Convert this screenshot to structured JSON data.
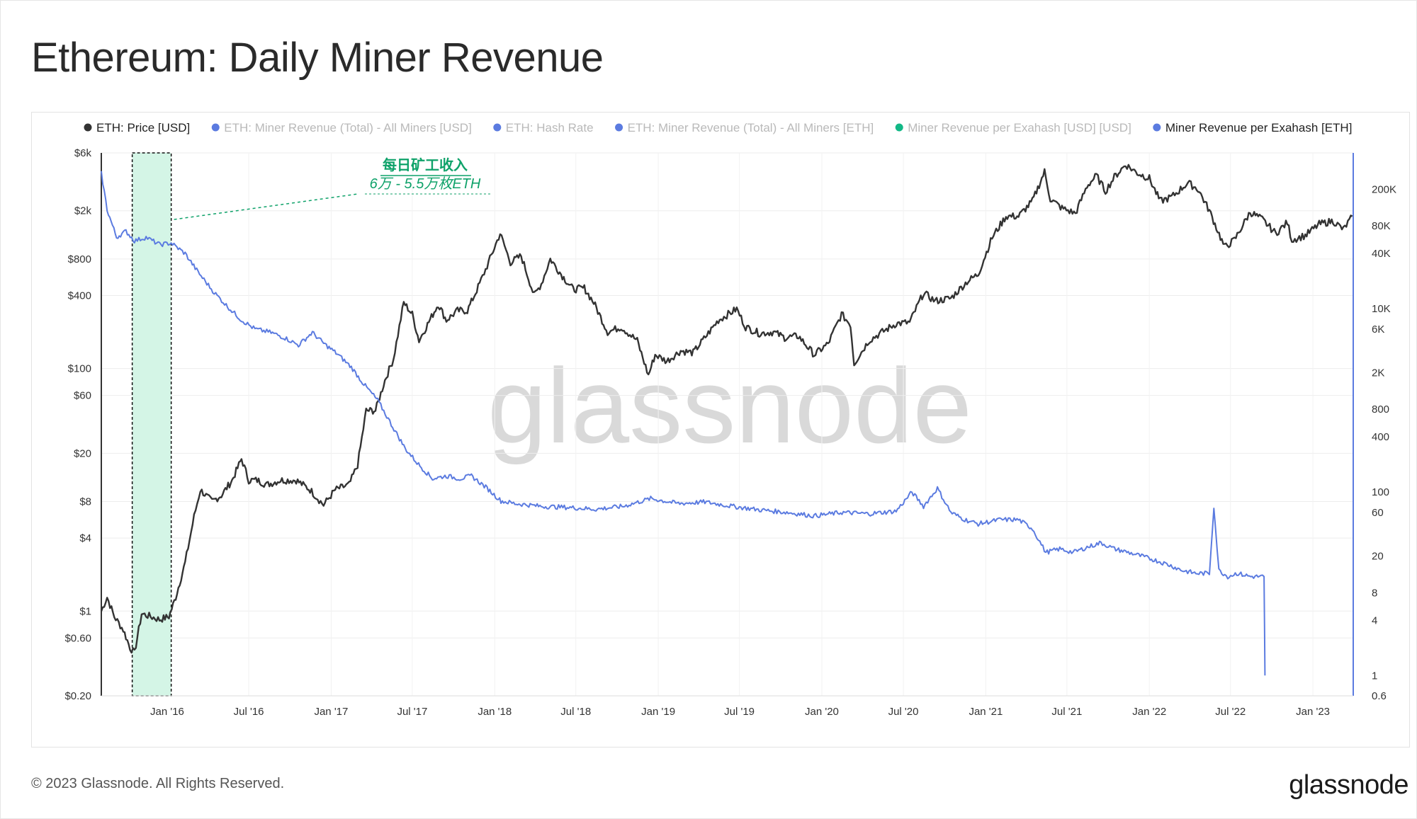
{
  "page": {
    "title": "Ethereum: Daily Miner Revenue",
    "copyright": "© 2023 Glassnode. All Rights Reserved.",
    "footer_logo": "glassnode",
    "watermark": "glassnode"
  },
  "colors": {
    "price": "#333333",
    "revenue": "#5b7be0",
    "highlight_fill": "#d4f5e6",
    "annotation": "#0fa26a"
  },
  "annotation": {
    "title": "每日矿工收入",
    "subtitle": "6万 - 5.5万枚ETH"
  },
  "chart_data": {
    "type": "line",
    "title": "Ethereum: Daily Miner Revenue",
    "x_ticks": [
      "Jan '16",
      "Jul '16",
      "Jan '17",
      "Jul '17",
      "Jan '18",
      "Jul '18",
      "Jan '19",
      "Jul '19",
      "Jan '20",
      "Jul '20",
      "Jan '21",
      "Jul '21",
      "Jan '22",
      "Jul '22",
      "Jan '23"
    ],
    "y_left_ticks": [
      "$6k",
      "$2k",
      "$800",
      "$400",
      "$100",
      "$60",
      "$20",
      "$8",
      "$4",
      "$1",
      "$0.60",
      "$0.20"
    ],
    "y_right_ticks": [
      "200K",
      "80K",
      "40K",
      "10K",
      "6K",
      "2K",
      "800",
      "400",
      "100",
      "60",
      "20",
      "8",
      "4",
      "1",
      "0.6"
    ],
    "y_left_scale": "log",
    "y_right_scale": "log",
    "y_left_range": [
      0.2,
      6000
    ],
    "y_right_range": [
      0.6,
      500000
    ],
    "legend": [
      {
        "label": "ETH: Price [USD]",
        "color": "#333333",
        "active": true
      },
      {
        "label": "ETH: Miner Revenue (Total) - All Miners [USD]",
        "color": "#5b7be0",
        "active": false
      },
      {
        "label": "ETH: Hash Rate",
        "color": "#5b7be0",
        "active": false
      },
      {
        "label": "ETH: Miner Revenue (Total) - All Miners [ETH]",
        "color": "#5b7be0",
        "active": false
      },
      {
        "label": "Miner Revenue per Exahash [USD] [USD]",
        "color": "#12b886",
        "active": false
      },
      {
        "label": "Miner Revenue per Exahash [ETH]",
        "color": "#5b7be0",
        "active": true
      }
    ],
    "highlight": {
      "from": "2015-10-15",
      "to": "2016-01-10"
    },
    "series": [
      {
        "name": "ETH: Price [USD]",
        "axis": "left",
        "points": [
          [
            "2015-08-07",
            1.0
          ],
          [
            "2015-08-20",
            1.3
          ],
          [
            "2015-09-05",
            0.9
          ],
          [
            "2015-09-25",
            0.7
          ],
          [
            "2015-10-10",
            0.5
          ],
          [
            "2015-10-20",
            0.45
          ],
          [
            "2015-11-05",
            0.95
          ],
          [
            "2015-11-25",
            0.9
          ],
          [
            "2015-12-15",
            0.85
          ],
          [
            "2016-01-05",
            0.9
          ],
          [
            "2016-01-20",
            1.3
          ],
          [
            "2016-02-10",
            2.5
          ],
          [
            "2016-03-01",
            6
          ],
          [
            "2016-03-15",
            10
          ],
          [
            "2016-04-10",
            8
          ],
          [
            "2016-05-01",
            9
          ],
          [
            "2016-05-25",
            12
          ],
          [
            "2016-06-15",
            18
          ],
          [
            "2016-07-01",
            12
          ],
          [
            "2016-07-20",
            12
          ],
          [
            "2016-08-10",
            11
          ],
          [
            "2016-09-10",
            12
          ],
          [
            "2016-10-15",
            12
          ],
          [
            "2016-11-15",
            10
          ],
          [
            "2016-12-15",
            7.5
          ],
          [
            "2017-01-10",
            10
          ],
          [
            "2017-02-10",
            11
          ],
          [
            "2017-03-01",
            16
          ],
          [
            "2017-03-20",
            45
          ],
          [
            "2017-04-10",
            45
          ],
          [
            "2017-05-01",
            80
          ],
          [
            "2017-05-20",
            120
          ],
          [
            "2017-06-12",
            350
          ],
          [
            "2017-07-01",
            280
          ],
          [
            "2017-07-16",
            170
          ],
          [
            "2017-08-01",
            220
          ],
          [
            "2017-08-28",
            340
          ],
          [
            "2017-09-15",
            250
          ],
          [
            "2017-10-10",
            300
          ],
          [
            "2017-11-01",
            300
          ],
          [
            "2017-11-25",
            470
          ],
          [
            "2017-12-15",
            700
          ],
          [
            "2018-01-13",
            1300
          ],
          [
            "2018-02-05",
            750
          ],
          [
            "2018-03-01",
            850
          ],
          [
            "2018-03-30",
            400
          ],
          [
            "2018-04-15",
            500
          ],
          [
            "2018-05-05",
            800
          ],
          [
            "2018-06-01",
            580
          ],
          [
            "2018-06-25",
            450
          ],
          [
            "2018-07-20",
            460
          ],
          [
            "2018-08-10",
            350
          ],
          [
            "2018-09-10",
            200
          ],
          [
            "2018-10-10",
            220
          ],
          [
            "2018-11-15",
            170
          ],
          [
            "2018-12-10",
            88
          ],
          [
            "2018-12-25",
            130
          ],
          [
            "2019-01-20",
            115
          ],
          [
            "2019-02-20",
            140
          ],
          [
            "2019-03-20",
            135
          ],
          [
            "2019-04-10",
            170
          ],
          [
            "2019-05-15",
            250
          ],
          [
            "2019-06-25",
            310
          ],
          [
            "2019-07-15",
            220
          ],
          [
            "2019-08-15",
            195
          ],
          [
            "2019-09-15",
            200
          ],
          [
            "2019-10-10",
            180
          ],
          [
            "2019-11-10",
            185
          ],
          [
            "2019-12-15",
            130
          ],
          [
            "2020-01-15",
            160
          ],
          [
            "2020-02-14",
            280
          ],
          [
            "2020-03-05",
            230
          ],
          [
            "2020-03-13",
            110
          ],
          [
            "2020-04-15",
            170
          ],
          [
            "2020-05-15",
            200
          ],
          [
            "2020-06-15",
            235
          ],
          [
            "2020-07-15",
            240
          ],
          [
            "2020-08-15",
            420
          ],
          [
            "2020-09-10",
            360
          ],
          [
            "2020-10-15",
            380
          ],
          [
            "2020-11-20",
            520
          ],
          [
            "2020-12-15",
            600
          ],
          [
            "2021-01-15",
            1200
          ],
          [
            "2021-02-15",
            1800
          ],
          [
            "2021-03-15",
            1800
          ],
          [
            "2021-04-15",
            2400
          ],
          [
            "2021-05-12",
            4200
          ],
          [
            "2021-05-25",
            2500
          ],
          [
            "2021-06-20",
            2100
          ],
          [
            "2021-07-20",
            1900
          ],
          [
            "2021-08-15",
            3200
          ],
          [
            "2021-09-05",
            3900
          ],
          [
            "2021-09-25",
            2900
          ],
          [
            "2021-10-15",
            3800
          ],
          [
            "2021-11-09",
            4800
          ],
          [
            "2021-12-05",
            4100
          ],
          [
            "2022-01-01",
            3700
          ],
          [
            "2022-01-25",
            2400
          ],
          [
            "2022-02-20",
            2600
          ],
          [
            "2022-03-28",
            3400
          ],
          [
            "2022-04-20",
            3000
          ],
          [
            "2022-05-15",
            2000
          ],
          [
            "2022-06-18",
            1000
          ],
          [
            "2022-07-10",
            1150
          ],
          [
            "2022-08-14",
            1950
          ],
          [
            "2022-09-10",
            1700
          ],
          [
            "2022-10-10",
            1300
          ],
          [
            "2022-11-05",
            1600
          ],
          [
            "2022-11-15",
            1150
          ],
          [
            "2022-12-15",
            1250
          ],
          [
            "2023-01-15",
            1550
          ],
          [
            "2023-02-15",
            1650
          ],
          [
            "2023-03-10",
            1400
          ],
          [
            "2023-03-30",
            1800
          ]
        ]
      },
      {
        "name": "Miner Revenue per Exahash [ETH]",
        "axis": "right",
        "points": [
          [
            "2015-08-07",
            300000
          ],
          [
            "2015-08-20",
            120000
          ],
          [
            "2015-09-10",
            60000
          ],
          [
            "2015-10-01",
            70000
          ],
          [
            "2015-10-20",
            55000
          ],
          [
            "2015-11-15",
            60000
          ],
          [
            "2015-12-15",
            50000
          ],
          [
            "2016-01-10",
            52000
          ],
          [
            "2016-02-10",
            40000
          ],
          [
            "2016-03-10",
            25000
          ],
          [
            "2016-04-15",
            15000
          ],
          [
            "2016-05-15",
            10500
          ],
          [
            "2016-06-15",
            7500
          ],
          [
            "2016-07-15",
            6000
          ],
          [
            "2016-08-20",
            5500
          ],
          [
            "2016-09-20",
            4800
          ],
          [
            "2016-10-20",
            4000
          ],
          [
            "2016-11-20",
            5500
          ],
          [
            "2016-12-15",
            4200
          ],
          [
            "2017-01-15",
            3200
          ],
          [
            "2017-02-15",
            2300
          ],
          [
            "2017-03-15",
            1500
          ],
          [
            "2017-04-15",
            1000
          ],
          [
            "2017-05-15",
            550
          ],
          [
            "2017-06-15",
            300
          ],
          [
            "2017-07-15",
            200
          ],
          [
            "2017-08-15",
            140
          ],
          [
            "2017-09-15",
            150
          ],
          [
            "2017-10-15",
            140
          ],
          [
            "2017-11-10",
            150
          ],
          [
            "2017-12-15",
            110
          ],
          [
            "2018-01-15",
            80
          ],
          [
            "2018-02-15",
            75
          ],
          [
            "2018-04-15",
            70
          ],
          [
            "2018-06-15",
            68
          ],
          [
            "2018-08-15",
            65
          ],
          [
            "2018-10-15",
            70
          ],
          [
            "2018-12-15",
            85
          ],
          [
            "2019-02-15",
            75
          ],
          [
            "2019-04-15",
            78
          ],
          [
            "2019-06-15",
            70
          ],
          [
            "2019-08-15",
            64
          ],
          [
            "2019-10-15",
            60
          ],
          [
            "2019-12-15",
            55
          ],
          [
            "2020-02-15",
            60
          ],
          [
            "2020-04-15",
            58
          ],
          [
            "2020-06-15",
            62
          ],
          [
            "2020-07-20",
            100
          ],
          [
            "2020-08-15",
            70
          ],
          [
            "2020-09-15",
            110
          ],
          [
            "2020-10-15",
            60
          ],
          [
            "2020-11-15",
            50
          ],
          [
            "2020-12-15",
            45
          ],
          [
            "2021-02-01",
            50
          ],
          [
            "2021-03-15",
            50
          ],
          [
            "2021-04-15",
            40
          ],
          [
            "2021-05-15",
            22
          ],
          [
            "2021-06-15",
            24
          ],
          [
            "2021-07-15",
            22
          ],
          [
            "2021-08-15",
            25
          ],
          [
            "2021-09-15",
            28
          ],
          [
            "2021-10-15",
            24
          ],
          [
            "2021-11-15",
            22
          ],
          [
            "2021-12-15",
            20
          ],
          [
            "2022-01-15",
            18
          ],
          [
            "2022-02-15",
            16
          ],
          [
            "2022-03-15",
            14
          ],
          [
            "2022-04-15",
            13
          ],
          [
            "2022-05-15",
            13
          ],
          [
            "2022-05-25",
            70
          ],
          [
            "2022-06-05",
            14
          ],
          [
            "2022-06-25",
            12
          ],
          [
            "2022-07-15",
            13
          ],
          [
            "2022-08-15",
            12
          ],
          [
            "2022-09-14",
            12
          ],
          [
            "2022-09-16",
            1.0
          ]
        ]
      }
    ]
  }
}
